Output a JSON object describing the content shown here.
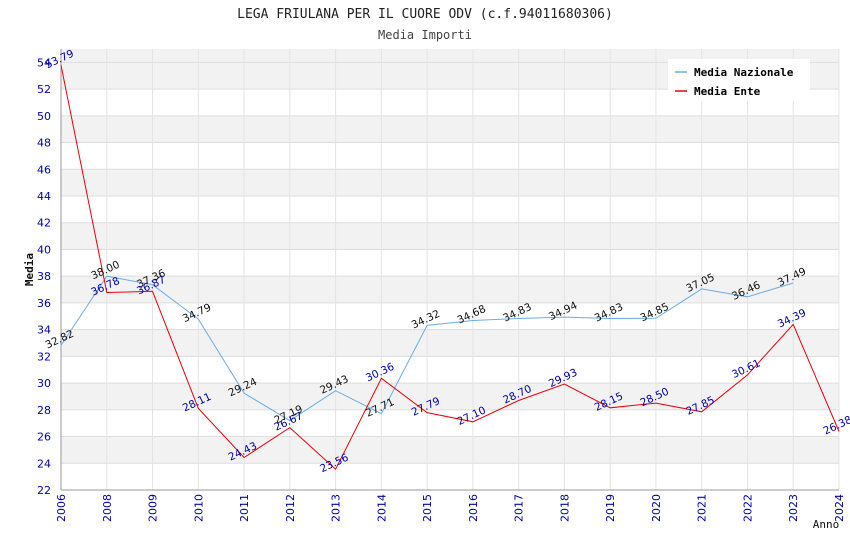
{
  "chart_data": {
    "type": "line",
    "title": "LEGA FRIULANA PER IL CUORE ODV (c.f.94011680306)",
    "subtitle": "Media Importi",
    "xlabel": "Anno",
    "ylabel": "Media",
    "ylim": [
      22,
      55
    ],
    "yticks": [
      "22",
      "24",
      "26",
      "28",
      "30",
      "32",
      "34",
      "36",
      "38",
      "40",
      "42",
      "44",
      "46",
      "48",
      "50",
      "52",
      "54"
    ],
    "categories": [
      "2006",
      "2008",
      "2009",
      "2010",
      "2011",
      "2012",
      "2013",
      "2014",
      "2015",
      "2016",
      "2017",
      "2018",
      "2019",
      "2020",
      "2021",
      "2022",
      "2023",
      "2024"
    ],
    "grid": true,
    "legend_position": "top-right",
    "series": [
      {
        "name": "Media Nazionale",
        "color": "#6aaee8",
        "values": [
          32.82,
          38.0,
          37.36,
          34.79,
          29.24,
          27.19,
          29.43,
          27.71,
          34.32,
          34.68,
          34.83,
          34.94,
          34.83,
          34.85,
          37.05,
          36.46,
          37.49,
          null
        ],
        "labels": [
          "32.82",
          "38.00",
          "37.36",
          "34.79",
          "29.24",
          "27.19",
          "29.43",
          "27.71",
          "34.32",
          "34.68",
          "34.83",
          "34.94",
          "34.83",
          "34.85",
          "37.05",
          "36.46",
          "37.49",
          ""
        ]
      },
      {
        "name": "Media Ente",
        "color": "#e8000b",
        "values": [
          53.79,
          36.78,
          36.87,
          28.11,
          24.43,
          26.67,
          23.56,
          30.36,
          27.79,
          27.1,
          28.7,
          29.93,
          28.15,
          28.5,
          27.85,
          30.61,
          34.39,
          26.38
        ],
        "labels": [
          "53.79",
          "36.78",
          "36.87",
          "28.11",
          "24.43",
          "26.67",
          "23.56",
          "30.36",
          "27.79",
          "27.10",
          "28.70",
          "29.93",
          "28.15",
          "28.50",
          "27.85",
          "30.61",
          "34.39",
          "26.38"
        ]
      }
    ]
  }
}
